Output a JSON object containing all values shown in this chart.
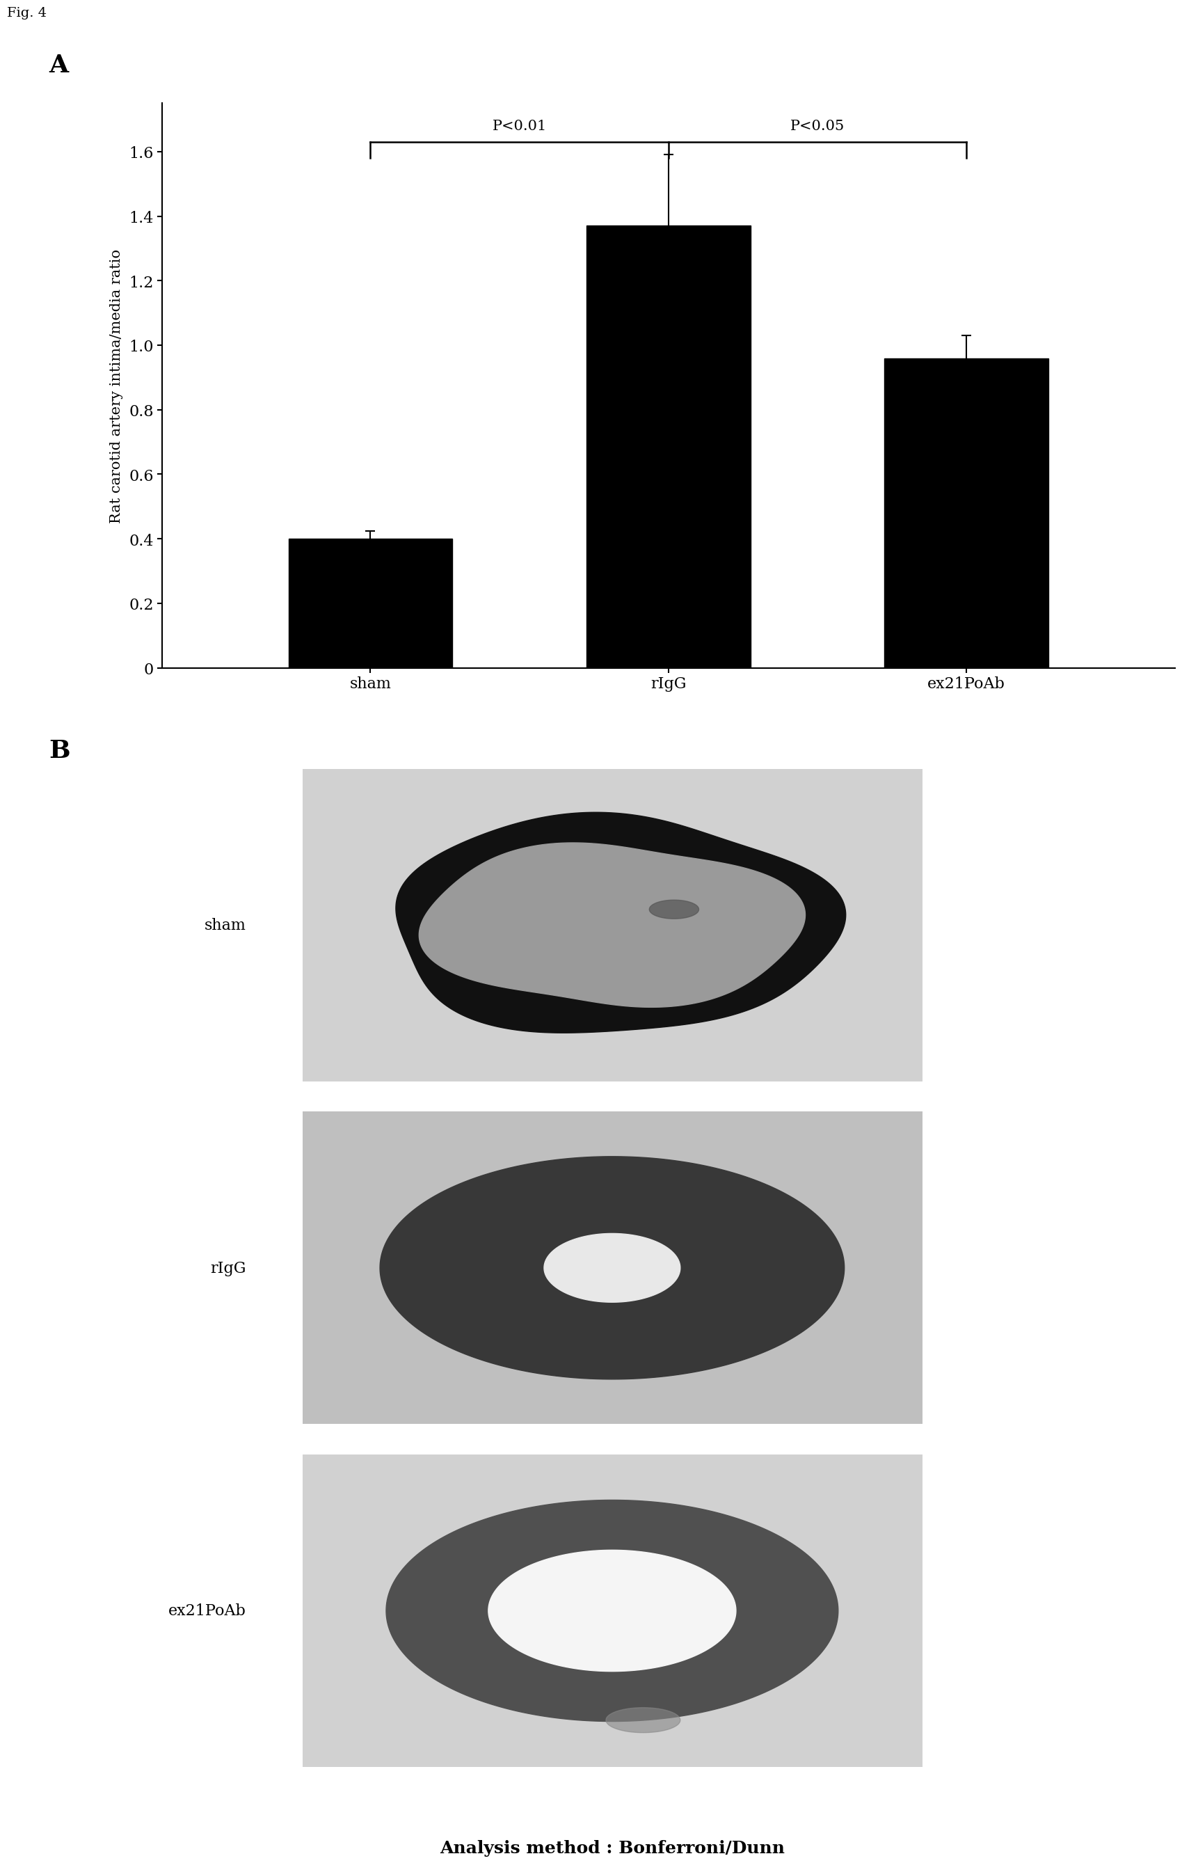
{
  "fig_label": "Fig. 4",
  "panel_A_label": "A",
  "panel_B_label": "B",
  "categories": [
    "sham",
    "rIgG",
    "ex21PoAb"
  ],
  "values": [
    0.4,
    1.37,
    0.96
  ],
  "errors": [
    0.025,
    0.22,
    0.07
  ],
  "bar_color": "#000000",
  "ylabel": "Rat carotid artery intima/media ratio",
  "ylim": [
    0,
    1.75
  ],
  "yticks": [
    0,
    0.2,
    0.4,
    0.6,
    0.8,
    1.0,
    1.2,
    1.4,
    1.6
  ],
  "sig_label_1": "P<0.01",
  "sig_label_2": "P<0.05",
  "analysis_text": "Analysis method : Bonferroni/Dunn",
  "bg_color": "#ffffff",
  "microscopy_labels": [
    "sham",
    "rIgG",
    "ex21PoAb"
  ],
  "bar_width": 0.55,
  "tick_fontsize": 16,
  "label_fontsize": 15,
  "sig_fontsize": 15,
  "img_bg_colors": [
    0.82,
    0.75,
    0.82
  ],
  "img_ring_outer_colors": [
    "#111111",
    "#404040",
    "#606060"
  ],
  "img_ring_inner_colors": [
    "#aaaaaa",
    "#d0d0d0",
    "#f0f0f0"
  ]
}
